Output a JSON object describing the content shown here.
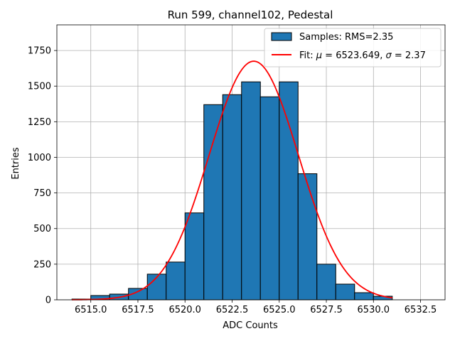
{
  "chart_data": {
    "type": "bar",
    "title": "Run 599, channel102, Pedestal",
    "xlabel": "ADC Counts",
    "ylabel": "Entries",
    "xlim": [
      6513.2,
      6533.8
    ],
    "ylim": [
      0,
      1930
    ],
    "grid": true,
    "xticks": [
      6515.0,
      6517.5,
      6520.0,
      6522.5,
      6525.0,
      6527.5,
      6530.0,
      6532.5
    ],
    "xtick_labels": [
      "6515.0",
      "6517.5",
      "6520.0",
      "6522.5",
      "6525.0",
      "6527.5",
      "6530.0",
      "6532.5"
    ],
    "yticks": [
      0,
      250,
      500,
      750,
      1000,
      1250,
      1500,
      1750
    ],
    "ytick_labels": [
      "0",
      "250",
      "500",
      "750",
      "1000",
      "1250",
      "1500",
      "1750"
    ],
    "bins": [
      {
        "left": 6514.0,
        "right": 6515.0,
        "value": 5
      },
      {
        "left": 6515.0,
        "right": 6516.0,
        "value": 30
      },
      {
        "left": 6516.0,
        "right": 6517.0,
        "value": 40
      },
      {
        "left": 6517.0,
        "right": 6518.0,
        "value": 80
      },
      {
        "left": 6518.0,
        "right": 6519.0,
        "value": 180
      },
      {
        "left": 6519.0,
        "right": 6520.0,
        "value": 265
      },
      {
        "left": 6520.0,
        "right": 6521.0,
        "value": 610
      },
      {
        "left": 6521.0,
        "right": 6522.0,
        "value": 1370
      },
      {
        "left": 6522.0,
        "right": 6523.0,
        "value": 1440
      },
      {
        "left": 6523.0,
        "right": 6524.0,
        "value": 1530
      },
      {
        "left": 6524.0,
        "right": 6525.0,
        "value": 1425
      },
      {
        "left": 6525.0,
        "right": 6526.0,
        "value": 1530
      },
      {
        "left": 6526.0,
        "right": 6527.0,
        "value": 885
      },
      {
        "left": 6527.0,
        "right": 6528.0,
        "value": 250
      },
      {
        "left": 6528.0,
        "right": 6529.0,
        "value": 110
      },
      {
        "left": 6529.0,
        "right": 6530.0,
        "value": 50
      },
      {
        "left": 6530.0,
        "right": 6531.0,
        "value": 25
      }
    ],
    "fit": {
      "mu": 6523.649,
      "sigma": 2.37,
      "amplitude": 1675,
      "x_range": [
        6514.0,
        6531.0
      ]
    },
    "series": [
      {
        "name": "Samples",
        "legend": "Samples: RMS=2.35",
        "color": "#1f77b4"
      },
      {
        "name": "Fit",
        "legend_prefix": "Fit: ",
        "legend_mu_sym": "μ",
        "legend_mu_val": " = 6523.649, ",
        "legend_sigma_sym": "σ",
        "legend_sigma_val": " = 2.37",
        "color": "#ff0000"
      }
    ],
    "legend_position": "top-right"
  }
}
